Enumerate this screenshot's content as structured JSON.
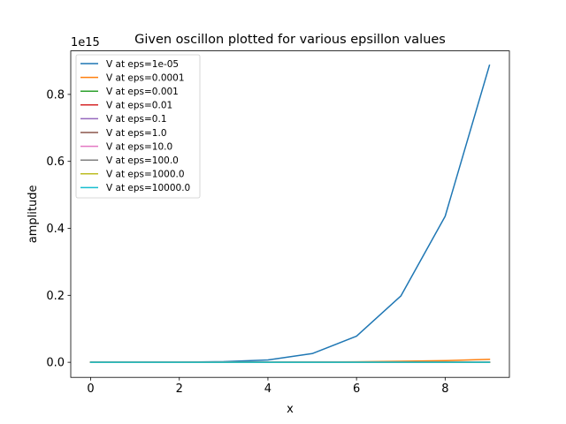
{
  "chart_data": {
    "type": "line",
    "title": "Given oscillon plotted for various epsillon values",
    "xlabel": "x",
    "ylabel": "amplitude",
    "y_offset_label": "1e15",
    "x": [
      0,
      1,
      2,
      3,
      4,
      5,
      6,
      7,
      8,
      9
    ],
    "xlim": [
      -0.45,
      9.45
    ],
    "ylim": [
      -0.045,
      0.93
    ],
    "x_ticks": [
      0,
      2,
      4,
      6,
      8
    ],
    "x_tick_labels": [
      "0",
      "2",
      "4",
      "6",
      "8"
    ],
    "y_ticks": [
      0.0,
      0.2,
      0.4,
      0.6,
      0.8
    ],
    "y_tick_labels": [
      "0.0",
      "0.2",
      "0.4",
      "0.6",
      "0.8"
    ],
    "grid": false,
    "legend_position": "top-left",
    "series": [
      {
        "name": "V at eps=1e-05",
        "color": "#1f77b4",
        "values": [
          0,
          0.0002,
          0.0004,
          0.002,
          0.007,
          0.026,
          0.078,
          0.198,
          0.436,
          0.887
        ]
      },
      {
        "name": "V at eps=0.0001",
        "color": "#ff7f0e",
        "values": [
          0,
          0,
          0,
          0,
          0.0002,
          0.0006,
          0.0015,
          0.003,
          0.005,
          0.009
        ]
      },
      {
        "name": "V at eps=0.001",
        "color": "#2ca02c",
        "values": [
          0,
          0,
          0,
          0,
          0,
          0,
          0,
          0,
          0,
          0
        ]
      },
      {
        "name": "V at eps=0.01",
        "color": "#d62728",
        "values": [
          0,
          0,
          0,
          0,
          0,
          0,
          0,
          0,
          0,
          0
        ]
      },
      {
        "name": "V at eps=0.1",
        "color": "#9467bd",
        "values": [
          0,
          0,
          0,
          0,
          0,
          0,
          0,
          0,
          0,
          0
        ]
      },
      {
        "name": "V at eps=1.0",
        "color": "#8c564b",
        "values": [
          0,
          0,
          0,
          0,
          0,
          0,
          0,
          0,
          0,
          0
        ]
      },
      {
        "name": "V at eps=10.0",
        "color": "#e377c2",
        "values": [
          0,
          0,
          0,
          0,
          0,
          0,
          0,
          0,
          0,
          0
        ]
      },
      {
        "name": "V at eps=100.0",
        "color": "#7f7f7f",
        "values": [
          0,
          0,
          0,
          0,
          0,
          0,
          0,
          0,
          0,
          0
        ]
      },
      {
        "name": "V at eps=1000.0",
        "color": "#bcbd22",
        "values": [
          0,
          0,
          0,
          0,
          0,
          0,
          0,
          0,
          0,
          0
        ]
      },
      {
        "name": "V at eps=10000.0",
        "color": "#17becf",
        "values": [
          0,
          0,
          0,
          0,
          0,
          0,
          0,
          0,
          0,
          0
        ]
      }
    ]
  }
}
